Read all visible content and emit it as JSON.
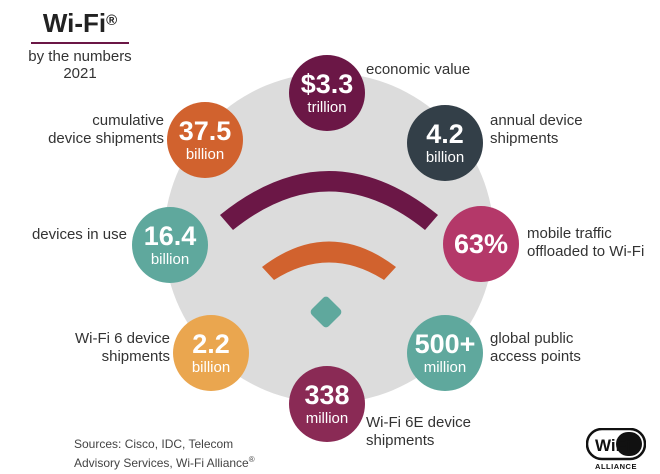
{
  "header": {
    "title": "Wi-Fi",
    "title_mark": "®",
    "subtitle_line1": "by the numbers",
    "subtitle_line2": "2021"
  },
  "stats": [
    {
      "id": "economic",
      "value": "$3.3",
      "unit": "trillion",
      "label_lines": [
        "economic value"
      ],
      "color": "#6b1746"
    },
    {
      "id": "annual",
      "value": "4.2",
      "unit": "billion",
      "label_lines": [
        "annual device",
        "shipments"
      ],
      "color": "#333f48"
    },
    {
      "id": "mobile",
      "value": "63%",
      "unit": "",
      "label_lines": [
        "mobile traffic",
        "offloaded to Wi-Fi"
      ],
      "color": "#b43869"
    },
    {
      "id": "hotspots",
      "value": "500+",
      "unit": "million",
      "label_lines": [
        "global public",
        "access points"
      ],
      "color": "#5fa89d"
    },
    {
      "id": "wifi6e",
      "value": "338",
      "unit": "million",
      "label_lines": [
        "Wi-Fi 6E device",
        "shipments"
      ],
      "color": "#8a2a55"
    },
    {
      "id": "wifi6",
      "value": "2.2",
      "unit": "billion",
      "label_lines": [
        "Wi-Fi 6 device",
        "shipments"
      ],
      "color": "#eaa64f"
    },
    {
      "id": "inuse",
      "value": "16.4",
      "unit": "billion",
      "label_lines": [
        "devices in use"
      ],
      "color": "#5fa89d"
    },
    {
      "id": "cumulative",
      "value": "37.5",
      "unit": "billion",
      "label_lines": [
        "cumulative",
        "device shipments"
      ],
      "color": "#d1622e"
    }
  ],
  "sources": {
    "line1": "Sources: Cisco, IDC, Telecom",
    "line2": "Advisory Services, Wi-Fi Alliance",
    "mark": "®"
  },
  "logo": {
    "text": "WiFi",
    "caption": "ALLIANCE"
  },
  "icon": {
    "name": "wifi-signal-icon",
    "outer_arc_color": "#6b1746",
    "inner_arc_color": "#d1622e",
    "dot_color": "#5fa89d"
  }
}
